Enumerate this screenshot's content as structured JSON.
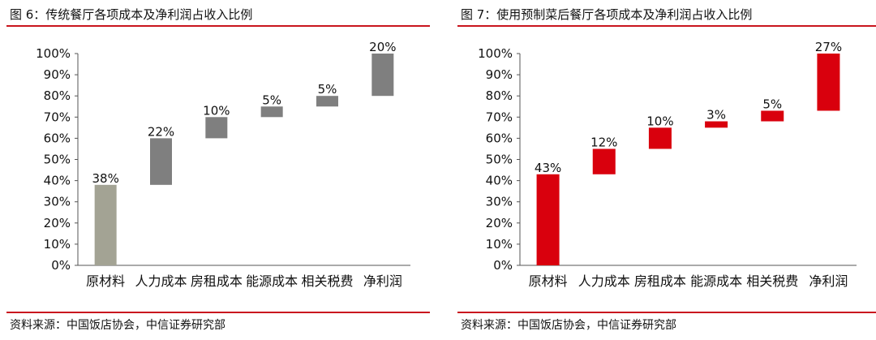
{
  "figures": [
    {
      "id": "left",
      "title": "图 6：传统餐厅各项成本及净利润占收入比例",
      "source": "资料来源：中国饭店协会，中信证券研究部"
    },
    {
      "id": "right",
      "title": "图 7：使用预制菜后餐厅各项成本及净利润占收入比例",
      "source": "资料来源：中国饭店协会，中信证券研究部"
    }
  ],
  "chart_data": [
    {
      "type": "bar",
      "subtype": "waterfall",
      "title": "图 6：传统餐厅各项成本及净利润占收入比例",
      "categories": [
        "原材料",
        "人力成本",
        "房租成本",
        "能源成本",
        "相关税费",
        "净利润"
      ],
      "values": [
        38,
        22,
        10,
        5,
        5,
        20
      ],
      "bar_labels": [
        "38%",
        "22%",
        "10%",
        "5%",
        "5%",
        "20%"
      ],
      "y_ticks": [
        "0%",
        "10%",
        "20%",
        "30%",
        "40%",
        "50%",
        "60%",
        "70%",
        "80%",
        "90%",
        "100%"
      ],
      "ylim": [
        0,
        100
      ],
      "unit": "%",
      "colors": {
        "first_bar": "#a3a394",
        "bars": "#7f7f7f"
      },
      "grid": false,
      "legend": "none"
    },
    {
      "type": "bar",
      "subtype": "waterfall",
      "title": "图 7：使用预制菜后餐厅各项成本及净利润占收入比例",
      "categories": [
        "原材料",
        "人力成本",
        "房租成本",
        "能源成本",
        "相关税费",
        "净利润"
      ],
      "values": [
        43,
        12,
        10,
        3,
        5,
        27
      ],
      "bar_labels": [
        "43%",
        "12%",
        "10%",
        "3%",
        "5%",
        "27%"
      ],
      "y_ticks": [
        "0%",
        "10%",
        "20%",
        "30%",
        "40%",
        "50%",
        "60%",
        "70%",
        "80%",
        "90%",
        "100%"
      ],
      "ylim": [
        0,
        100
      ],
      "unit": "%",
      "colors": {
        "first_bar": "#d9000d",
        "bars": "#d9000d"
      },
      "grid": false,
      "legend": "none"
    }
  ]
}
